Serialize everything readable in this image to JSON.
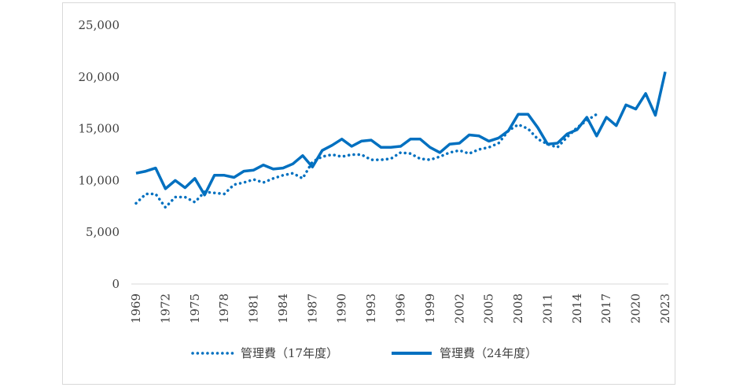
{
  "chart_data": {
    "type": "line",
    "title": "",
    "xlabel": "",
    "ylabel": "",
    "ylim": [
      0,
      25000
    ],
    "y_ticks": [
      "0",
      "5,000",
      "10,000",
      "15,000",
      "20,000",
      "25,000"
    ],
    "y_tick_values": [
      0,
      5000,
      10000,
      15000,
      20000,
      25000
    ],
    "x_tick_labels": [
      "1969",
      "1972",
      "1975",
      "1978",
      "1981",
      "1984",
      "1987",
      "1990",
      "1993",
      "1996",
      "1999",
      "2002",
      "2005",
      "2008",
      "2011",
      "2014",
      "2017",
      "2020",
      "2023"
    ],
    "grid": false,
    "legend_position": "bottom",
    "series": [
      {
        "name": "管理費（17年度）",
        "style": "dotted",
        "color": "#0070c0",
        "x": [
          1969,
          1970,
          1971,
          1972,
          1973,
          1974,
          1975,
          1976,
          1977,
          1978,
          1979,
          1980,
          1981,
          1982,
          1983,
          1984,
          1985,
          1986,
          1987,
          1988,
          1989,
          1990,
          1991,
          1992,
          1993,
          1994,
          1995,
          1996,
          1997,
          1998,
          1999,
          2000,
          2001,
          2002,
          2003,
          2004,
          2005,
          2006,
          2007,
          2008,
          2009,
          2010,
          2011,
          2012,
          2013,
          2014,
          2015,
          2016
        ],
        "values": [
          7800,
          8700,
          8700,
          7400,
          8400,
          8400,
          7900,
          8900,
          8800,
          8700,
          9600,
          9800,
          10100,
          9800,
          10200,
          10500,
          10700,
          10200,
          11800,
          12300,
          12500,
          12300,
          12500,
          12500,
          12000,
          12000,
          12100,
          12700,
          12600,
          12100,
          12000,
          12300,
          12700,
          12900,
          12600,
          13000,
          13200,
          13600,
          14800,
          15400,
          15000,
          14000,
          13500,
          13200,
          14200,
          15100,
          15800,
          16400
        ]
      },
      {
        "name": "管理費（24年度）",
        "style": "solid",
        "color": "#0070c0",
        "x": [
          1969,
          1970,
          1971,
          1972,
          1973,
          1974,
          1975,
          1976,
          1977,
          1978,
          1979,
          1980,
          1981,
          1982,
          1983,
          1984,
          1985,
          1986,
          1987,
          1988,
          1989,
          1990,
          1991,
          1992,
          1993,
          1994,
          1995,
          1996,
          1997,
          1998,
          1999,
          2000,
          2001,
          2002,
          2003,
          2004,
          2005,
          2006,
          2007,
          2008,
          2009,
          2010,
          2011,
          2012,
          2013,
          2014,
          2015,
          2016,
          2017,
          2018,
          2019,
          2020,
          2021,
          2022,
          2023
        ],
        "values": [
          10700,
          10900,
          11200,
          9200,
          10000,
          9300,
          10200,
          8600,
          10500,
          10500,
          10300,
          10900,
          11000,
          11500,
          11100,
          11200,
          11600,
          12400,
          11300,
          12900,
          13400,
          14000,
          13300,
          13800,
          13900,
          13200,
          13200,
          13300,
          14000,
          14000,
          13200,
          12700,
          13500,
          13600,
          14400,
          14300,
          13800,
          14100,
          14800,
          16400,
          16400,
          15100,
          13500,
          13600,
          14500,
          14900,
          16100,
          14300,
          16100,
          15300,
          17300,
          16900,
          18400,
          16300,
          20500
        ]
      }
    ]
  }
}
